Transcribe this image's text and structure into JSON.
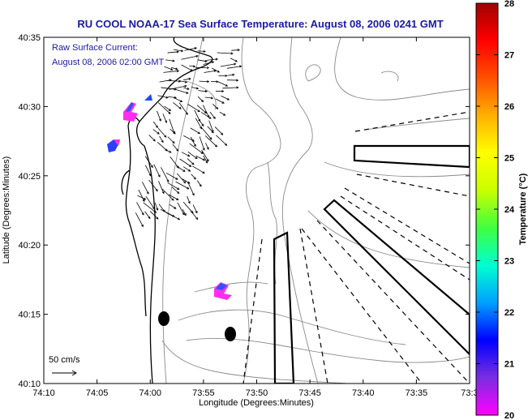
{
  "chart_data": {
    "type": "heatmap",
    "title": "RU COOL  NOAA-17  Sea Surface Temperature:  August 08, 2006 0241 GMT",
    "xlabel": "Longitude (Degrees:Minutes)",
    "ylabel": "Latitude (Degrees:Minutes)",
    "xticks": [
      "74:10",
      "74:05",
      "74:00",
      "73:55",
      "73:50",
      "73:45",
      "73:40",
      "73:35",
      "73:3"
    ],
    "yticks": [
      "40:35",
      "40:30",
      "40:25",
      "40:20",
      "40:15",
      "40:10"
    ],
    "xlim_minutes": [
      -10,
      30
    ],
    "ylim_minutes": [
      10,
      35
    ],
    "annotation": [
      "Raw Surface Current:",
      "August 08, 2006 02:00 GMT"
    ],
    "scale_label": "50 cm/s",
    "colorbar": {
      "label": "Temperature (°C)",
      "ticks": [
        "28",
        "27",
        "26",
        "25",
        "24",
        "23",
        "22",
        "21",
        "20"
      ],
      "range": [
        20,
        28
      ],
      "colors": [
        "#ff00ff",
        "#7a2ee0",
        "#0000ff",
        "#00a0ff",
        "#00ffd0",
        "#40ff40",
        "#c8ff00",
        "#ffff00",
        "#ffb000",
        "#ff5000",
        "#ff0000",
        "#a00000"
      ]
    },
    "sst_patches": [
      {
        "lon_min": -2.3,
        "lat_min": 29.4,
        "temp": 20.5
      },
      {
        "lon_min": -2.2,
        "lat_min": 29.8,
        "temp": 21.2
      },
      {
        "lon_min": -3.2,
        "lat_min": 26.9,
        "temp": 20.6
      },
      {
        "lon_min": -0.2,
        "lat_min": 30.8,
        "temp": 21.0
      },
      {
        "lon_min": 4.0,
        "lat_min": 16.4,
        "temp": 20.8
      }
    ],
    "current_vectors_region": {
      "lon_range_min": [
        -2,
        8
      ],
      "lat_range_min": [
        22,
        34
      ]
    },
    "colors": {
      "title": "#1a1aa6",
      "annotation": "#1a1aa6",
      "contours": "#888888",
      "coast": "#000000"
    }
  }
}
